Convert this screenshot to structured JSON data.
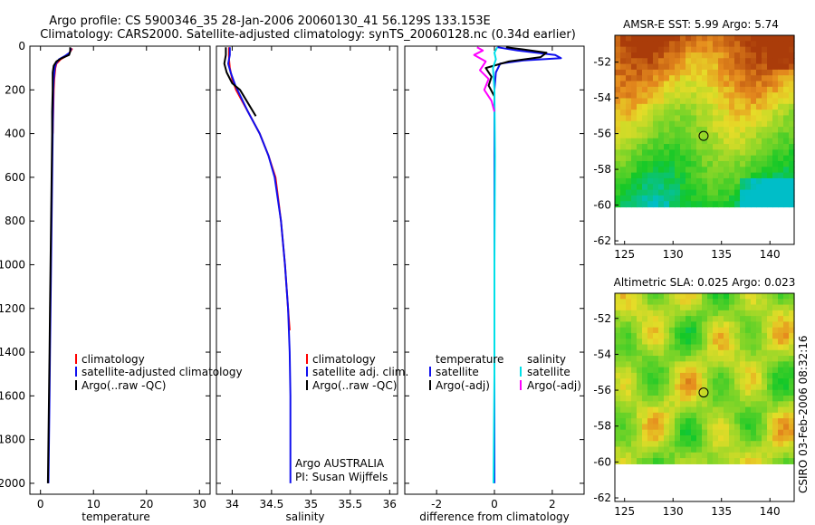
{
  "header": {
    "line1": "Argo profile: CS 5900346_35 28-Jan-2006 20060130_41 56.129S 133.153E",
    "line2": "Climatology: CARS2000. Satellite-adjusted climatology: synTS_20060128.nc (0.34d earlier)"
  },
  "credit": "CSIRO 03-Feb-2006 08:32:16",
  "annotation": {
    "line1": "Argo AUSTRALIA",
    "line2": "PI: Susan Wijffels"
  },
  "colors": {
    "climatology": "#ff0000",
    "satellite": "#1010ee",
    "argo": "#000000",
    "satellite_diff": "#00e0e8",
    "argo_sal_diff": "#ff00ff"
  },
  "chart_data": [
    {
      "id": "temperature",
      "type": "line",
      "xlabel": "temperature",
      "xlim": [
        -2,
        32
      ],
      "ylim": [
        2050,
        0
      ],
      "xticks": [
        0,
        10,
        20,
        30
      ],
      "yticks": [
        0,
        200,
        400,
        600,
        800,
        1000,
        1200,
        1400,
        1600,
        1800,
        2000
      ],
      "legend": [
        "climatology",
        "satellite-adjusted climatology",
        "Argo(..raw -QC)"
      ],
      "series": [
        {
          "name": "climatology",
          "color": "#ff0000",
          "points": [
            [
              6.0,
              10
            ],
            [
              5.2,
              40
            ],
            [
              3.8,
              60
            ],
            [
              3.0,
              80
            ],
            [
              2.8,
              100
            ],
            [
              2.6,
              150
            ],
            [
              2.5,
              200
            ],
            [
              2.4,
              300
            ],
            [
              2.3,
              400
            ]
          ]
        },
        {
          "name": "satellite-adjusted climatology",
          "color": "#1010ee",
          "points": [
            [
              5.8,
              10
            ],
            [
              5.5,
              30
            ],
            [
              4.6,
              45
            ],
            [
              3.5,
              60
            ],
            [
              2.9,
              80
            ],
            [
              2.7,
              100
            ],
            [
              2.5,
              150
            ],
            [
              2.4,
              200
            ],
            [
              2.3,
              400
            ],
            [
              2.2,
              600
            ],
            [
              2.1,
              800
            ],
            [
              2.0,
              1000
            ],
            [
              1.9,
              1200
            ],
            [
              1.8,
              1400
            ],
            [
              1.7,
              1600
            ],
            [
              1.6,
              1800
            ],
            [
              1.5,
              2000
            ]
          ]
        },
        {
          "name": "Argo(..raw -QC)",
          "color": "#000000",
          "points": [
            [
              5.6,
              5
            ],
            [
              5.6,
              25
            ],
            [
              5.4,
              40
            ],
            [
              4.0,
              55
            ],
            [
              3.0,
              70
            ],
            [
              2.5,
              90
            ],
            [
              2.3,
              120
            ],
            [
              2.3,
              160
            ],
            [
              2.3,
              200
            ],
            [
              2.2,
              300
            ],
            [
              2.2,
              400
            ],
            [
              2.1,
              600
            ],
            [
              2.0,
              800
            ],
            [
              1.9,
              1000
            ],
            [
              1.8,
              1200
            ],
            [
              1.7,
              1400
            ],
            [
              1.6,
              1600
            ],
            [
              1.5,
              1800
            ],
            [
              1.4,
              2000
            ]
          ]
        }
      ]
    },
    {
      "id": "salinity",
      "type": "line",
      "xlabel": "salinity",
      "xlim": [
        33.8,
        36.1
      ],
      "ylim": [
        2050,
        0
      ],
      "xticks": [
        34,
        34.5,
        35,
        35.5,
        36
      ],
      "legend": [
        "climatology",
        "satellite adj. clim.",
        "Argo(..raw -QC)"
      ],
      "series": [
        {
          "name": "climatology",
          "color": "#ff0000",
          "points": [
            [
              33.96,
              5
            ],
            [
              33.96,
              60
            ],
            [
              33.97,
              100
            ],
            [
              34.0,
              150
            ],
            [
              34.05,
              200
            ],
            [
              34.2,
              300
            ],
            [
              34.35,
              400
            ],
            [
              34.46,
              500
            ],
            [
              34.55,
              600
            ],
            [
              34.62,
              800
            ],
            [
              34.67,
              1000
            ],
            [
              34.71,
              1200
            ],
            [
              34.73,
              1300
            ]
          ]
        },
        {
          "name": "satellite adj. clim.",
          "color": "#1010ee",
          "points": [
            [
              33.97,
              5
            ],
            [
              33.97,
              40
            ],
            [
              33.95,
              80
            ],
            [
              33.98,
              120
            ],
            [
              34.04,
              180
            ],
            [
              34.2,
              300
            ],
            [
              34.35,
              400
            ],
            [
              34.46,
              500
            ],
            [
              34.54,
              600
            ],
            [
              34.62,
              800
            ],
            [
              34.67,
              1000
            ],
            [
              34.71,
              1200
            ],
            [
              34.73,
              1400
            ],
            [
              34.74,
              1600
            ],
            [
              34.74,
              1800
            ],
            [
              34.74,
              2000
            ]
          ]
        },
        {
          "name": "Argo(..raw -QC)",
          "color": "#000000",
          "points": [
            [
              33.92,
              5
            ],
            [
              33.92,
              40
            ],
            [
              33.9,
              80
            ],
            [
              33.93,
              120
            ],
            [
              34.0,
              170
            ],
            [
              34.1,
              200
            ],
            [
              34.2,
              260
            ],
            [
              34.3,
              320
            ]
          ]
        }
      ]
    },
    {
      "id": "difference",
      "type": "line",
      "xlabel": "difference from climatology",
      "xlim": [
        -3.1,
        3.1
      ],
      "ylim": [
        2050,
        0
      ],
      "xticks": [
        -2,
        0,
        2
      ],
      "legend": [
        "temperature",
        "satellite",
        "Argo(-adj)",
        "salinity",
        "satellite",
        "Argo(-adj)"
      ],
      "series": [
        {
          "name": "temperature satellite",
          "color": "#1010ee",
          "points": [
            [
              0.1,
              5
            ],
            [
              0.8,
              20
            ],
            [
              2.1,
              40
            ],
            [
              2.3,
              55
            ],
            [
              1.0,
              65
            ],
            [
              0.2,
              80
            ],
            [
              0.05,
              120
            ],
            [
              0,
              200
            ],
            [
              0,
              400
            ],
            [
              0,
              800
            ],
            [
              0,
              1200
            ],
            [
              0,
              1600
            ],
            [
              0,
              2000
            ]
          ]
        },
        {
          "name": "temperature Argo(-adj)",
          "color": "#000000",
          "points": [
            [
              0.4,
              5
            ],
            [
              1.0,
              15
            ],
            [
              1.8,
              30
            ],
            [
              1.6,
              50
            ],
            [
              0.5,
              70
            ],
            [
              -0.3,
              100
            ],
            [
              -0.1,
              140
            ],
            [
              -0.2,
              180
            ],
            [
              0,
              230
            ],
            [
              0,
              300
            ]
          ]
        },
        {
          "name": "salinity satellite",
          "color": "#00e0e8",
          "points": [
            [
              0.1,
              5
            ],
            [
              0.0,
              30
            ],
            [
              0.05,
              60
            ],
            [
              -0.05,
              100
            ],
            [
              0.0,
              200
            ],
            [
              0.02,
              500
            ],
            [
              0.0,
              1000
            ],
            [
              0.0,
              1500
            ],
            [
              -0.03,
              2000
            ]
          ]
        },
        {
          "name": "salinity Argo(-adj)",
          "color": "#ff00ff",
          "points": [
            [
              -0.6,
              5
            ],
            [
              -0.4,
              20
            ],
            [
              -0.7,
              40
            ],
            [
              -0.3,
              70
            ],
            [
              -0.5,
              110
            ],
            [
              -0.2,
              150
            ],
            [
              -0.35,
              200
            ],
            [
              -0.1,
              250
            ],
            [
              0,
              300
            ]
          ]
        }
      ]
    },
    {
      "id": "sst_map",
      "type": "heatmap",
      "title": "AMSR-E SST: 5.99 Argo: 5.74",
      "xlim": [
        124,
        142.5
      ],
      "ylim": [
        -62.2,
        -50.5
      ],
      "data_ymin": -60.1,
      "xticks": [
        125,
        130,
        135,
        140
      ],
      "yticks": [
        -52,
        -54,
        -56,
        -58,
        -60,
        -62
      ],
      "marker": {
        "lon": 133.153,
        "lat": -56.129
      }
    },
    {
      "id": "sla_map",
      "type": "heatmap",
      "title": "Altimetric SLA: 0.025 Argo: 0.023",
      "xlim": [
        124,
        142.5
      ],
      "ylim": [
        -62.2,
        -50.6
      ],
      "data_ymin": -60.1,
      "xticks": [
        125,
        130,
        135,
        140
      ],
      "yticks": [
        -52,
        -54,
        -56,
        -58,
        -60,
        -62
      ],
      "marker": {
        "lon": 133.153,
        "lat": -56.129
      }
    }
  ]
}
